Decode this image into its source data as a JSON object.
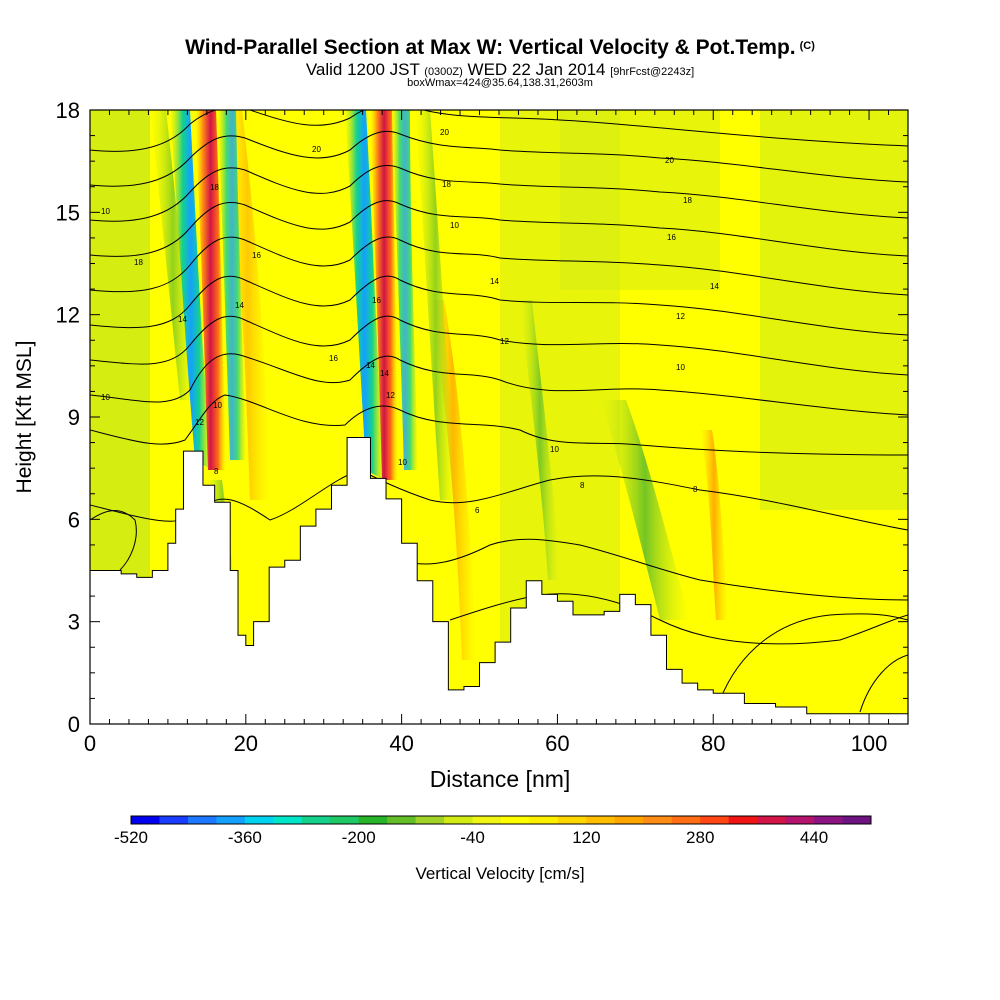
{
  "header": {
    "title": "Wind-Parallel Section at Max W: Vertical Velocity & Pot.Temp.",
    "copyright": "(C)",
    "valid_prefix": "Valid 1200 JST",
    "valid_z": "(0300Z)",
    "valid_date": "WED 22 Jan 2014",
    "forecast_info": "[9hrFcst@2243z]",
    "box_info": "boxWmax=424@35.64,138.31,2603m"
  },
  "chart_data": {
    "type": "heatmap",
    "xlabel": "Distance [nm]",
    "ylabel": "Height [Kft MSL]",
    "xlim": [
      0,
      105
    ],
    "ylim": [
      0,
      18
    ],
    "x_ticks": [
      0,
      20,
      40,
      60,
      80,
      100
    ],
    "y_ticks": [
      0,
      3,
      6,
      9,
      12,
      15,
      18
    ],
    "colorbar": {
      "title": "Vertical Velocity [cm/s]",
      "min": -520,
      "max": 520,
      "tick_labels": [
        -520,
        -360,
        -200,
        -40,
        120,
        280,
        440
      ],
      "colors": [
        "#0000f0",
        "#1a3cff",
        "#1e78ff",
        "#14a0ff",
        "#00d2f0",
        "#00e6c8",
        "#14d28c",
        "#1ec864",
        "#28b428",
        "#64be28",
        "#a0d228",
        "#d2eb14",
        "#f0f514",
        "#ffff00",
        "#fff000",
        "#ffd700",
        "#ffbe00",
        "#ffa500",
        "#ff8c14",
        "#ff6e14",
        "#ff4614",
        "#f01414",
        "#d21446",
        "#b4146e",
        "#8c1482",
        "#6e1482"
      ]
    },
    "terrain": [
      {
        "x": 0,
        "h": 4.5
      },
      {
        "x": 2,
        "h": 4.5
      },
      {
        "x": 4,
        "h": 4.4
      },
      {
        "x": 6,
        "h": 4.3
      },
      {
        "x": 8,
        "h": 4.5
      },
      {
        "x": 10,
        "h": 5.3
      },
      {
        "x": 11,
        "h": 6.3
      },
      {
        "x": 12,
        "h": 8.0
      },
      {
        "x": 14,
        "h": 8.0
      },
      {
        "x": 14.5,
        "h": 7.0
      },
      {
        "x": 16,
        "h": 6.5
      },
      {
        "x": 18,
        "h": 4.5
      },
      {
        "x": 19,
        "h": 2.6
      },
      {
        "x": 20,
        "h": 2.3
      },
      {
        "x": 21,
        "h": 3.0
      },
      {
        "x": 23,
        "h": 4.6
      },
      {
        "x": 25,
        "h": 4.8
      },
      {
        "x": 27,
        "h": 5.8
      },
      {
        "x": 29,
        "h": 6.3
      },
      {
        "x": 31,
        "h": 7.0
      },
      {
        "x": 33,
        "h": 8.4
      },
      {
        "x": 35,
        "h": 8.4
      },
      {
        "x": 36,
        "h": 7.2
      },
      {
        "x": 38,
        "h": 6.6
      },
      {
        "x": 40,
        "h": 5.3
      },
      {
        "x": 42,
        "h": 4.2
      },
      {
        "x": 44,
        "h": 3.0
      },
      {
        "x": 46,
        "h": 1.0
      },
      {
        "x": 48,
        "h": 1.1
      },
      {
        "x": 50,
        "h": 1.8
      },
      {
        "x": 52,
        "h": 2.4
      },
      {
        "x": 54,
        "h": 3.4
      },
      {
        "x": 56,
        "h": 4.2
      },
      {
        "x": 58,
        "h": 3.8
      },
      {
        "x": 60,
        "h": 3.6
      },
      {
        "x": 62,
        "h": 3.2
      },
      {
        "x": 64,
        "h": 3.2
      },
      {
        "x": 66,
        "h": 3.3
      },
      {
        "x": 68,
        "h": 3.8
      },
      {
        "x": 70,
        "h": 3.5
      },
      {
        "x": 72,
        "h": 2.6
      },
      {
        "x": 74,
        "h": 1.6
      },
      {
        "x": 76,
        "h": 1.2
      },
      {
        "x": 78,
        "h": 1.0
      },
      {
        "x": 80,
        "h": 0.9
      },
      {
        "x": 84,
        "h": 0.6
      },
      {
        "x": 88,
        "h": 0.5
      },
      {
        "x": 92,
        "h": 0.3
      },
      {
        "x": 96,
        "h": 0.3
      },
      {
        "x": 100,
        "h": 0.3
      },
      {
        "x": 105,
        "h": 0.3
      }
    ],
    "contour_labels": [
      "10",
      "12",
      "14",
      "16",
      "18",
      "20",
      "6",
      "8"
    ]
  }
}
